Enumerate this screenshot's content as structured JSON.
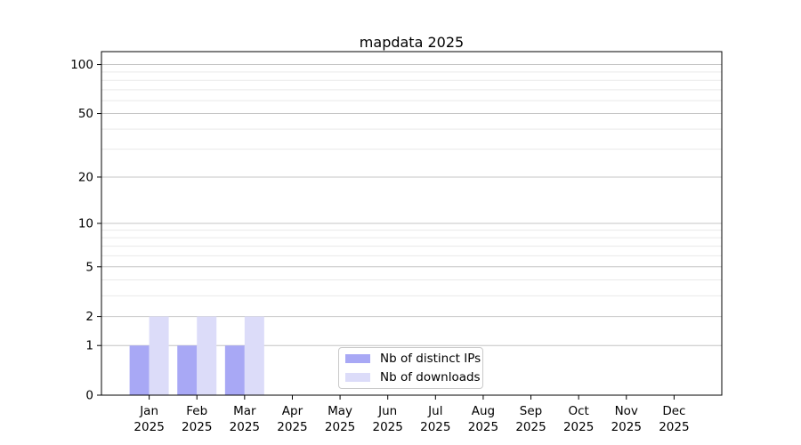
{
  "title": "mapdata 2025",
  "chart_data": {
    "type": "bar",
    "title": "mapdata 2025",
    "categories": [
      "Jan 2025",
      "Feb 2025",
      "Mar 2025",
      "Apr 2025",
      "May 2025",
      "Jun 2025",
      "Jul 2025",
      "Aug 2025",
      "Sep 2025",
      "Oct 2025",
      "Nov 2025",
      "Dec 2025"
    ],
    "month_labels": [
      "Jan",
      "Feb",
      "Mar",
      "Apr",
      "May",
      "Jun",
      "Jul",
      "Aug",
      "Sep",
      "Oct",
      "Nov",
      "Dec"
    ],
    "year_label": "2025",
    "series": [
      {
        "name": "Nb of distinct IPs",
        "color": "#a8a8f5",
        "values": [
          1,
          1,
          1,
          0,
          0,
          0,
          0,
          0,
          0,
          0,
          0,
          0
        ]
      },
      {
        "name": "Nb of downloads",
        "color": "#dcdcf9",
        "values": [
          2,
          2,
          2,
          0,
          0,
          0,
          0,
          0,
          0,
          0,
          0,
          0
        ]
      }
    ],
    "yscale": "log1p",
    "ylim": [
      0,
      120
    ],
    "y_major_ticks": [
      0,
      1,
      2,
      5,
      10,
      20,
      50,
      100
    ],
    "y_minor_ticks": [
      3,
      4,
      6,
      7,
      8,
      9,
      30,
      40,
      60,
      70,
      80,
      90
    ],
    "grid": true,
    "legend_position": "inside-bottom-center",
    "xlabel": "",
    "ylabel": ""
  },
  "colors": {
    "background": "#ffffff",
    "axis": "#000000",
    "text": "#000000",
    "grid_major": "#c4c4c4",
    "grid_minor": "#e9e9e9",
    "legend_border": "#c9c9c9"
  },
  "legend": {
    "items": [
      {
        "label": "Nb of distinct IPs",
        "swatch_color": "#a8a8f5"
      },
      {
        "label": "Nb of downloads",
        "swatch_color": "#dcdcf9"
      }
    ]
  }
}
